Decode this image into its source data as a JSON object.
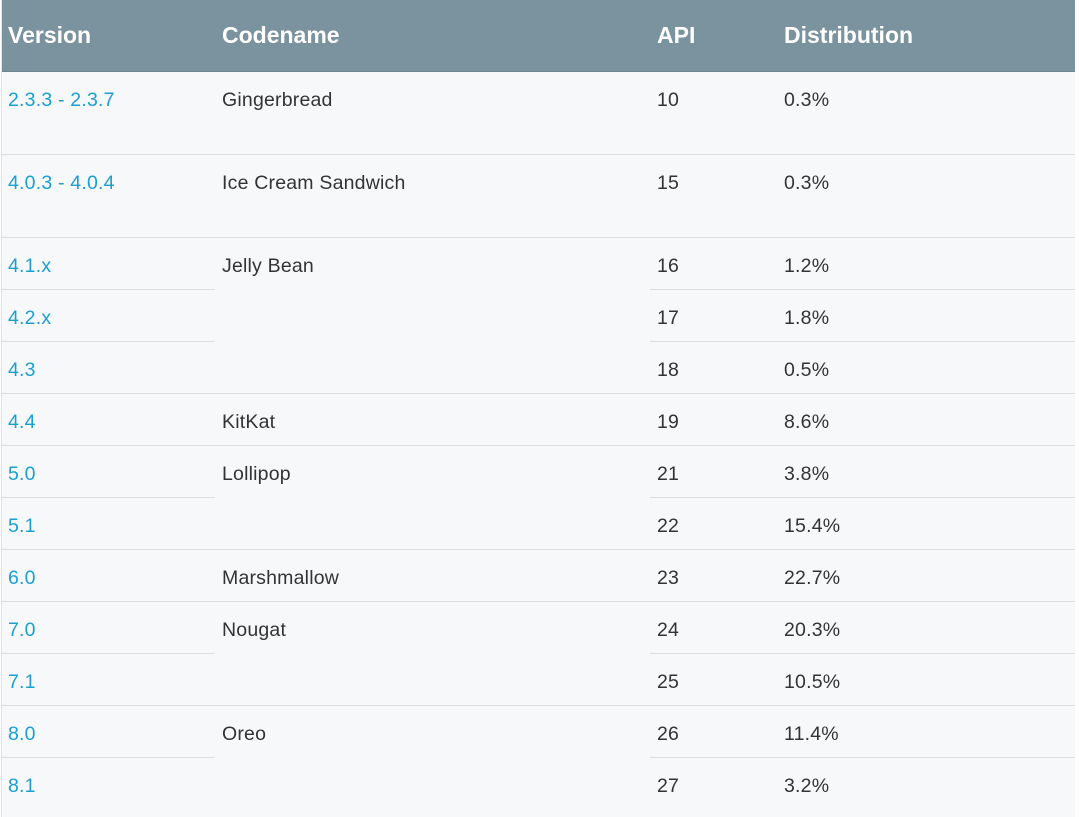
{
  "table": {
    "headers": {
      "version": "Version",
      "codename": "Codename",
      "api": "API",
      "distribution": "Distribution"
    },
    "rows": [
      {
        "version": "2.3.3 - 2.3.7",
        "codename": "Gingerbread",
        "api": "10",
        "distribution": "0.3%"
      },
      {
        "version": "4.0.3 - 4.0.4",
        "codename": "Ice Cream Sandwich",
        "api": "15",
        "distribution": "0.3%"
      },
      {
        "version": "4.1.x",
        "codename": "Jelly Bean",
        "api": "16",
        "distribution": "1.2%"
      },
      {
        "version": "4.2.x",
        "codename": "",
        "api": "17",
        "distribution": "1.8%"
      },
      {
        "version": "4.3",
        "codename": "",
        "api": "18",
        "distribution": "0.5%"
      },
      {
        "version": "4.4",
        "codename": "KitKat",
        "api": "19",
        "distribution": "8.6%"
      },
      {
        "version": "5.0",
        "codename": "Lollipop",
        "api": "21",
        "distribution": "3.8%"
      },
      {
        "version": "5.1",
        "codename": "",
        "api": "22",
        "distribution": "15.4%"
      },
      {
        "version": "6.0",
        "codename": "Marshmallow",
        "api": "23",
        "distribution": "22.7%"
      },
      {
        "version": "7.0",
        "codename": "Nougat",
        "api": "24",
        "distribution": "20.3%"
      },
      {
        "version": "7.1",
        "codename": "",
        "api": "25",
        "distribution": "10.5%"
      },
      {
        "version": "8.0",
        "codename": "Oreo",
        "api": "26",
        "distribution": "11.4%"
      },
      {
        "version": "8.1",
        "codename": "",
        "api": "27",
        "distribution": "3.2%"
      }
    ]
  },
  "colors": {
    "header_bg": "#7b939f",
    "header_text": "#ffffff",
    "link": "#1a9fd0",
    "body_text": "#333333",
    "row_bg": "#f7f8fa",
    "divider": "#dcdfe2"
  }
}
